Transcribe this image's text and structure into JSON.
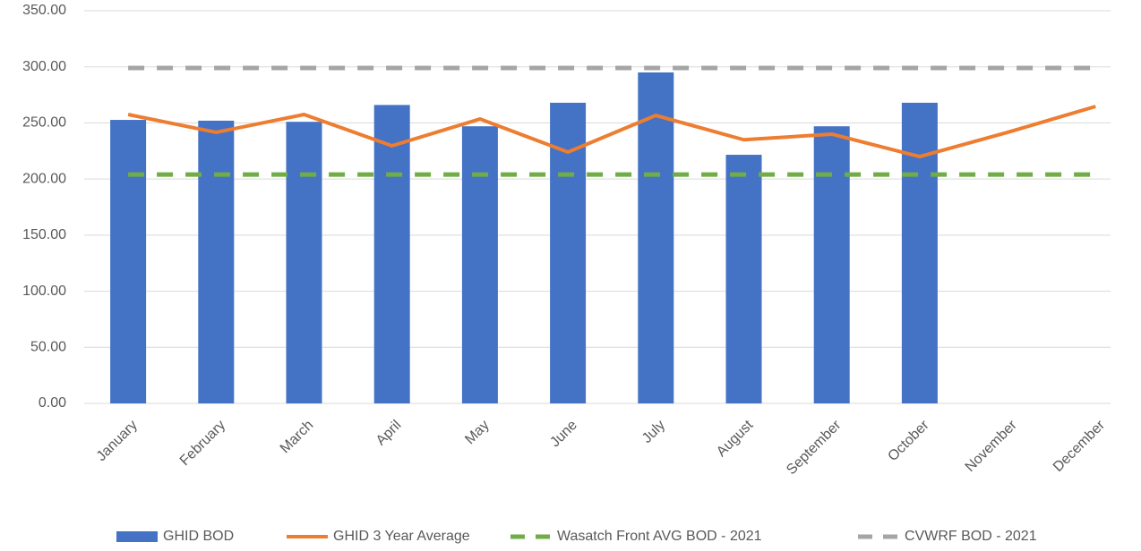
{
  "chart_data": {
    "type": "bar-line",
    "categories": [
      "January",
      "February",
      "March",
      "April",
      "May",
      "June",
      "July",
      "August",
      "September",
      "October",
      "November",
      "December"
    ],
    "series": [
      {
        "name": "GHID BOD",
        "type": "bar",
        "color": "#4472c4",
        "values": [
          252.7,
          252,
          251,
          266,
          247,
          268,
          295,
          221.6,
          247,
          268,
          null,
          null
        ]
      },
      {
        "name": "GHID 3 Year Average",
        "type": "line",
        "color": "#ed7d31",
        "values": [
          257.5,
          241.6,
          257.5,
          229.6,
          253.5,
          224,
          256.7,
          235,
          240,
          220,
          241.6,
          264.7
        ]
      },
      {
        "name": "Wasatch Front AVG BOD - 2021",
        "type": "dashed",
        "color": "#70ad47",
        "values": [
          204,
          204,
          204,
          204,
          204,
          204,
          204,
          204,
          204,
          204,
          204,
          204
        ]
      },
      {
        "name": "CVWRF BOD - 2021",
        "type": "dashed",
        "color": "#a5a5a5",
        "values": [
          299,
          299,
          299,
          299,
          299,
          299,
          299,
          299,
          299,
          299,
          299,
          299
        ]
      }
    ],
    "ylim": [
      0,
      350
    ],
    "yticks": [
      {
        "value": 0,
        "label": "0.00"
      },
      {
        "value": 50,
        "label": "50.00"
      },
      {
        "value": 100,
        "label": "100.00"
      },
      {
        "value": 150,
        "label": "150.00"
      },
      {
        "value": 200,
        "label": "200.00"
      },
      {
        "value": 250,
        "label": "250.00"
      },
      {
        "value": 300,
        "label": "300.00"
      },
      {
        "value": 350,
        "label": "350.00"
      }
    ],
    "grid": true
  }
}
